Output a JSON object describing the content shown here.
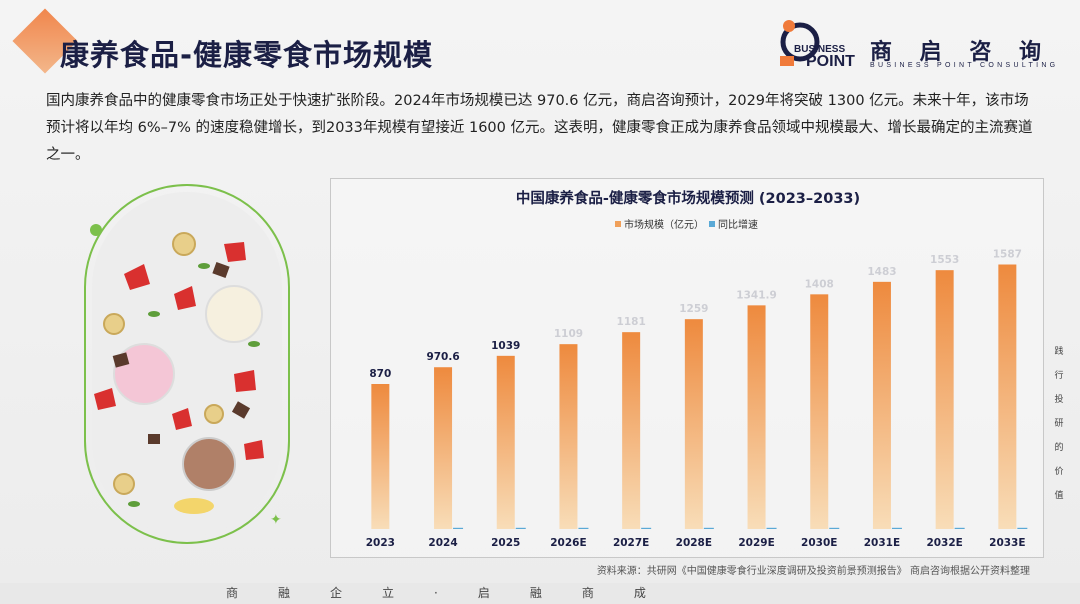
{
  "header": {
    "title": "康养食品-健康零食市场规模"
  },
  "logo": {
    "mark_text_1": "BUSINESS",
    "mark_text_2": "POINT",
    "name": "商 启 咨 询",
    "sub": "BUSINESS POINT CONSULTING"
  },
  "intro": {
    "text": "国内康养食品中的健康零食市场正处于快速扩张阶段。2024年市场规模已达 970.6 亿元，商启咨询预计，2029年将突破 1300 亿元。未来十年，该市场预计将以年均 6%–7% 的速度稳健增长，到2033年规模有望接近 1600 亿元。这表明，健康零食正成为康养食品领域中规模最大、增长最确定的主流赛道之一。"
  },
  "chart_data": {
    "type": "bar",
    "title": "中国康养食品-健康零食市场规模预测 (2023–2033)",
    "categories": [
      "2023",
      "2024",
      "2025",
      "2026E",
      "2027E",
      "2028E",
      "2029E",
      "2030E",
      "2031E",
      "2032E",
      "2033E"
    ],
    "series": [
      {
        "name": "市场规模（亿元）",
        "values": [
          870,
          970.6,
          1039,
          1109,
          1181,
          1259,
          1341.9,
          1408,
          1483,
          1553,
          1587
        ],
        "color": "#f0a05a"
      },
      {
        "name": "同比增速",
        "values": [
          null,
          11.6,
          7.0,
          6.7,
          6.5,
          6.6,
          6.6,
          4.9,
          5.3,
          4.7,
          2.2
        ],
        "color": "#5aa9d6"
      }
    ],
    "data_labels": [
      "870",
      "970.6",
      "1039",
      "1109",
      "1181",
      "1259",
      "1341.9",
      "1408",
      "1483",
      "1553",
      "1587"
    ],
    "ylim": [
      0,
      1800
    ],
    "legend_position": "top-center",
    "grid": false
  },
  "side_note": [
    "践",
    "行",
    "投",
    "研",
    "的",
    "价",
    "值"
  ],
  "source": "资料来源：共研网《中国健康零食行业深度调研及投资前景预测报告》 商启咨询根据公开资料整理",
  "footer": "商融企立·启融商成",
  "colors": {
    "accent": "#f07a3a",
    "navy": "#1b1f45",
    "bar": "#f0a05a",
    "green": "#7cc04b"
  }
}
